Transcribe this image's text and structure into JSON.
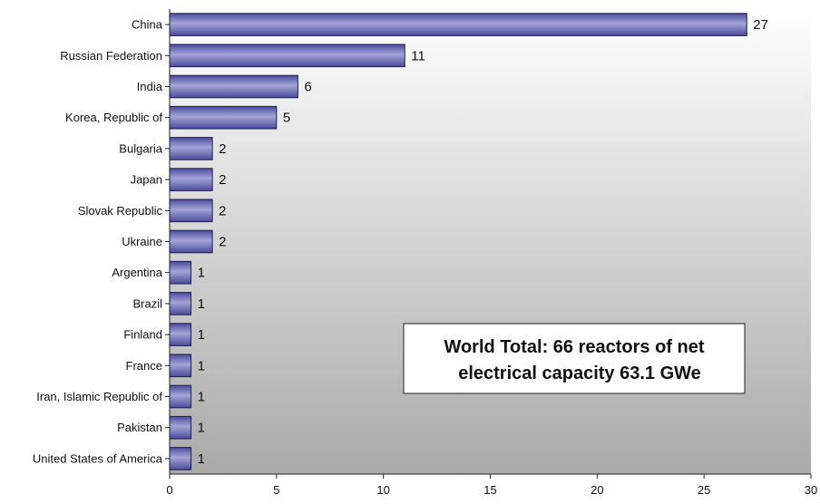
{
  "chart_data": {
    "type": "bar",
    "orientation": "horizontal",
    "categories": [
      "China",
      "Russian Federation",
      "India",
      "Korea, Republic of",
      "Bulgaria",
      "Japan",
      "Slovak Republic",
      "Ukraine",
      "Argentina",
      "Brazil",
      "Finland",
      "France",
      "Iran, Islamic Republic of",
      "Pakistan",
      "United States of America"
    ],
    "values": [
      27,
      11,
      6,
      5,
      2,
      2,
      2,
      2,
      1,
      1,
      1,
      1,
      1,
      1,
      1
    ],
    "value_labels": [
      "27",
      "11",
      "6",
      "5",
      "2",
      "2",
      "2",
      "2",
      "1",
      "1",
      "1",
      "1",
      "1",
      "1",
      "1"
    ],
    "xlim": [
      0,
      30
    ],
    "xticks": [
      0,
      5,
      10,
      15,
      20,
      25,
      30
    ],
    "grid": false,
    "annotation": {
      "lines": [
        "World Total: 66 reactors of net",
        "electrical capacity 63.1 GWe"
      ],
      "placement": "lower-right"
    },
    "colors": {
      "bar_fill_dark": "#4a4a9c",
      "bar_fill_light": "#a4a4d8",
      "bar_stroke": "#1e1e50",
      "plot_bg_top": "#ffffff",
      "plot_bg_bottom": "#a9a9a9"
    }
  }
}
